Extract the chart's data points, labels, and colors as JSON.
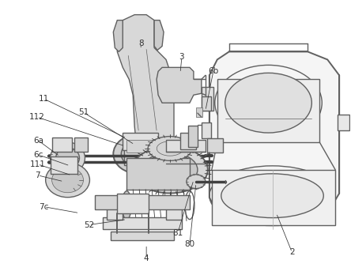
{
  "bg_color": "#ffffff",
  "lc": "#606060",
  "lc_dark": "#404040",
  "lc_light": "#909090",
  "label_color": "#333333",
  "lw_main": 1.0,
  "lw_thin": 0.5,
  "lw_thick": 1.4,
  "figsize": [
    4.44,
    3.48
  ],
  "dpi": 100,
  "ax_aspect": "auto",
  "xlim": [
    0,
    444
  ],
  "ylim": [
    0,
    348
  ]
}
